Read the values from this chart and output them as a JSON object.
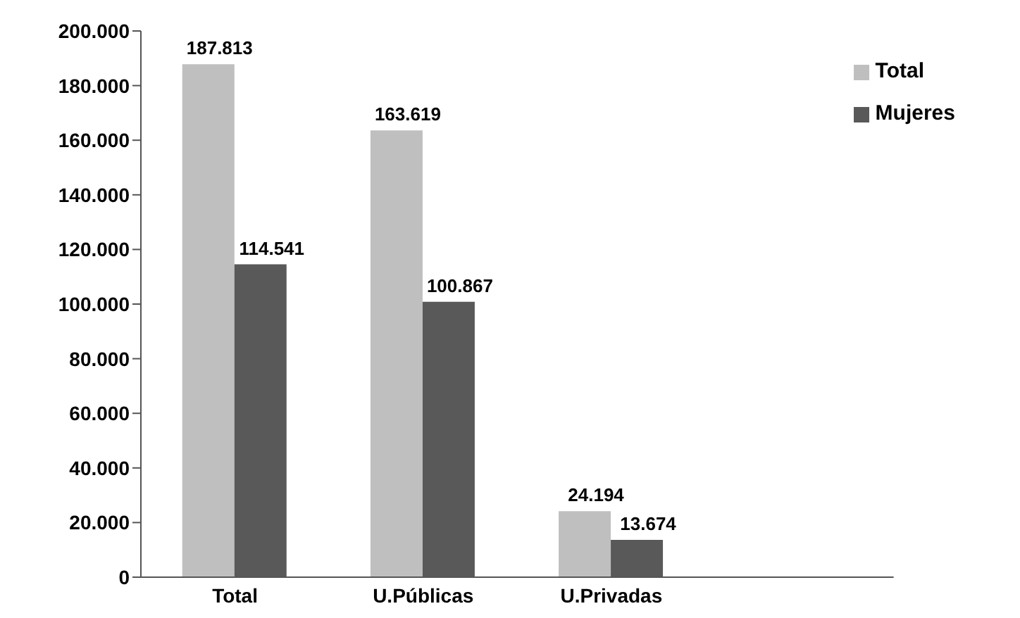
{
  "chart_data": {
    "type": "bar",
    "categories": [
      "Total",
      "U.Públicas",
      "U.Privadas",
      null
    ],
    "series": [
      {
        "name": "Total",
        "color": "#bfbfbf",
        "values": [
          187813,
          163619,
          24194,
          null
        ],
        "value_labels": [
          "187.813",
          "163.619",
          "24.194",
          null
        ]
      },
      {
        "name": "Mujeres",
        "color": "#595959",
        "values": [
          114541,
          100867,
          13674,
          null
        ],
        "value_labels": [
          "114.541",
          "100.867",
          "13.674",
          null
        ]
      }
    ],
    "ylim": [
      0,
      200000
    ],
    "yticks": [
      {
        "value": 0,
        "label": "0"
      },
      {
        "value": 20000,
        "label": "20.000"
      },
      {
        "value": 40000,
        "label": "40.000"
      },
      {
        "value": 60000,
        "label": "60.000"
      },
      {
        "value": 80000,
        "label": "80.000"
      },
      {
        "value": 100000,
        "label": "100.000"
      },
      {
        "value": 120000,
        "label": "120.000"
      },
      {
        "value": 140000,
        "label": "140.000"
      },
      {
        "value": 160000,
        "label": "160.000"
      },
      {
        "value": 180000,
        "label": "180.000"
      },
      {
        "value": 200000,
        "label": "200.000"
      }
    ],
    "grid": false,
    "legend": "top right"
  }
}
